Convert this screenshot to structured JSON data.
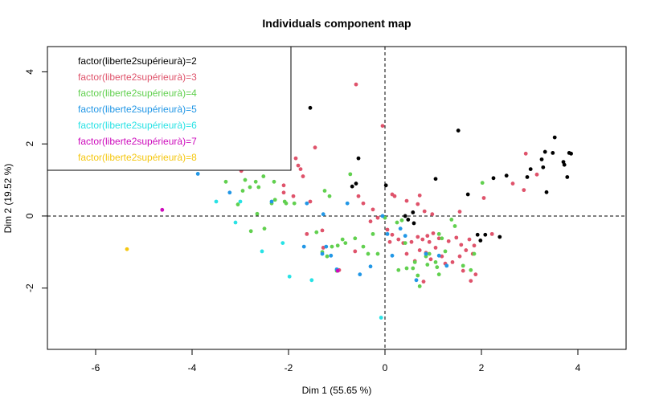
{
  "chart_data": {
    "type": "scatter",
    "title": "Individuals component map",
    "xlabel": "Dim 1 (55.65 %)",
    "ylabel": "Dim 2 (19.52 %)",
    "xlim": [
      -7.0,
      5.0
    ],
    "ylim": [
      -3.7,
      4.7
    ],
    "xticks": [
      -6,
      -4,
      -2,
      0,
      2,
      4
    ],
    "yticks": [
      -2,
      0,
      2,
      4
    ],
    "grid": false,
    "reference_lines": {
      "x": 0,
      "y": 0,
      "style": "dashed"
    },
    "legend_position": "top-left",
    "series": [
      {
        "name": "factor(liberte2supérieurà)=2",
        "color": "#000000",
        "points": [
          [
            -1.55,
            3.0
          ],
          [
            -0.55,
            1.6
          ],
          [
            -0.6,
            0.9
          ],
          [
            -0.68,
            0.82
          ],
          [
            0.02,
            0.85
          ],
          [
            1.05,
            1.03
          ],
          [
            1.52,
            2.37
          ],
          [
            1.72,
            0.6
          ],
          [
            2.25,
            1.05
          ],
          [
            2.52,
            1.12
          ],
          [
            2.95,
            1.08
          ],
          [
            3.02,
            1.3
          ],
          [
            3.25,
            1.57
          ],
          [
            3.28,
            1.35
          ],
          [
            3.32,
            1.78
          ],
          [
            3.35,
            0.66
          ],
          [
            3.48,
            1.75
          ],
          [
            3.52,
            2.18
          ],
          [
            3.7,
            1.5
          ],
          [
            3.72,
            1.42
          ],
          [
            3.78,
            1.08
          ],
          [
            3.82,
            1.75
          ],
          [
            3.86,
            1.73
          ],
          [
            0.42,
            0.0
          ],
          [
            0.48,
            -0.1
          ],
          [
            0.58,
            0.1
          ],
          [
            0.6,
            -0.2
          ],
          [
            1.92,
            -0.52
          ],
          [
            1.98,
            -0.68
          ],
          [
            2.08,
            -0.52
          ],
          [
            2.38,
            -0.58
          ]
        ]
      },
      {
        "name": "factor(liberte2supérieurà)=3",
        "color": "#DF536B",
        "points": [
          [
            -0.6,
            3.65
          ],
          [
            -0.05,
            2.5
          ],
          [
            -1.45,
            1.9
          ],
          [
            -1.85,
            1.6
          ],
          [
            -1.8,
            1.4
          ],
          [
            -1.75,
            1.3
          ],
          [
            -1.7,
            1.1
          ],
          [
            -2.98,
            1.25
          ],
          [
            -2.1,
            0.85
          ],
          [
            -2.1,
            0.65
          ],
          [
            -1.9,
            0.55
          ],
          [
            -1.55,
            0.4
          ],
          [
            -0.55,
            0.55
          ],
          [
            -0.45,
            0.35
          ],
          [
            -0.25,
            0.18
          ],
          [
            -0.15,
            -0.05
          ],
          [
            0.15,
            0.6
          ],
          [
            0.2,
            0.55
          ],
          [
            0.45,
            0.42
          ],
          [
            0.72,
            0.57
          ],
          [
            0.68,
            0.33
          ],
          [
            0.82,
            0.13
          ],
          [
            0.98,
            0.05
          ],
          [
            0.05,
            -0.38
          ],
          [
            0.1,
            -0.72
          ],
          [
            0.15,
            -0.52
          ],
          [
            0.28,
            -0.65
          ],
          [
            0.38,
            -0.75
          ],
          [
            0.45,
            -1.05
          ],
          [
            0.55,
            -0.72
          ],
          [
            0.62,
            -1.25
          ],
          [
            0.68,
            -0.58
          ],
          [
            0.72,
            -0.95
          ],
          [
            0.78,
            -0.65
          ],
          [
            0.85,
            -1.02
          ],
          [
            0.88,
            -0.55
          ],
          [
            0.92,
            -0.72
          ],
          [
            0.95,
            -1.2
          ],
          [
            1.0,
            -0.48
          ],
          [
            1.05,
            -0.88
          ],
          [
            1.12,
            -0.62
          ],
          [
            1.18,
            -1.12
          ],
          [
            1.25,
            -1.32
          ],
          [
            1.32,
            -0.7
          ],
          [
            1.4,
            -1.28
          ],
          [
            1.48,
            -0.6
          ],
          [
            1.55,
            -1.12
          ],
          [
            1.58,
            -0.8
          ],
          [
            1.62,
            -1.52
          ],
          [
            1.68,
            -0.95
          ],
          [
            1.75,
            -0.65
          ],
          [
            1.78,
            -1.8
          ],
          [
            1.82,
            -1.05
          ],
          [
            1.85,
            -0.82
          ],
          [
            1.88,
            -1.62
          ],
          [
            1.55,
            0.12
          ],
          [
            2.05,
            0.5
          ],
          [
            2.22,
            -0.5
          ],
          [
            2.65,
            0.9
          ],
          [
            2.88,
            0.72
          ],
          [
            2.92,
            1.73
          ],
          [
            3.15,
            1.15
          ],
          [
            0.8,
            -1.82
          ],
          [
            -0.95,
            -1.5
          ],
          [
            -1.28,
            -0.88
          ],
          [
            -1.62,
            -0.5
          ],
          [
            -1.3,
            -0.4
          ],
          [
            -0.62,
            -0.98
          ],
          [
            -0.3,
            -0.15
          ]
        ]
      },
      {
        "name": "factor(liberte2supérieurà)=4",
        "color": "#61D04F",
        "points": [
          [
            -2.1,
            2.5
          ],
          [
            -0.72,
            1.16
          ],
          [
            -2.52,
            1.1
          ],
          [
            -2.9,
            1.0
          ],
          [
            -2.68,
            0.95
          ],
          [
            -3.3,
            0.95
          ],
          [
            -2.3,
            0.95
          ],
          [
            -2.62,
            0.8
          ],
          [
            -2.8,
            0.8
          ],
          [
            -2.95,
            0.7
          ],
          [
            -1.25,
            0.7
          ],
          [
            -1.15,
            0.55
          ],
          [
            -2.28,
            0.45
          ],
          [
            -2.35,
            0.35
          ],
          [
            -2.05,
            0.35
          ],
          [
            -2.08,
            0.4
          ],
          [
            -1.88,
            0.35
          ],
          [
            -3.05,
            0.32
          ],
          [
            -2.65,
            0.06
          ],
          [
            -2.78,
            -0.42
          ],
          [
            -2.5,
            -0.35
          ],
          [
            -1.42,
            -0.45
          ],
          [
            -1.3,
            -1.0
          ],
          [
            -1.1,
            -0.85
          ],
          [
            -0.98,
            -0.82
          ],
          [
            -0.88,
            -0.65
          ],
          [
            -0.82,
            -0.75
          ],
          [
            -0.62,
            -0.62
          ],
          [
            -0.45,
            -0.85
          ],
          [
            -0.25,
            -0.5
          ],
          [
            -0.35,
            -1.05
          ],
          [
            -0.15,
            -1.05
          ],
          [
            -1.2,
            -1.12
          ],
          [
            -1.0,
            -1.52
          ],
          [
            0.0,
            -0.05
          ],
          [
            0.25,
            -0.18
          ],
          [
            0.35,
            -0.12
          ],
          [
            0.42,
            -0.75
          ],
          [
            0.28,
            -1.5
          ],
          [
            0.45,
            -1.45
          ],
          [
            0.58,
            -1.45
          ],
          [
            0.68,
            -1.65
          ],
          [
            0.62,
            -1.28
          ],
          [
            0.72,
            -1.95
          ],
          [
            0.85,
            -1.12
          ],
          [
            0.88,
            -1.35
          ],
          [
            0.92,
            -1.05
          ],
          [
            1.05,
            -1.28
          ],
          [
            1.08,
            -1.42
          ],
          [
            1.12,
            -0.5
          ],
          [
            1.12,
            -1.62
          ],
          [
            1.18,
            -0.62
          ],
          [
            1.25,
            -0.98
          ],
          [
            1.38,
            -0.1
          ],
          [
            1.45,
            -0.28
          ],
          [
            1.62,
            -1.38
          ],
          [
            1.78,
            -1.5
          ],
          [
            1.85,
            -1.05
          ],
          [
            2.02,
            0.92
          ]
        ]
      },
      {
        "name": "factor(liberte2supérieurà)=5",
        "color": "#2297E6",
        "points": [
          [
            -5.52,
            1.38
          ],
          [
            -3.88,
            1.17
          ],
          [
            -3.22,
            0.65
          ],
          [
            -2.35,
            0.4
          ],
          [
            -1.68,
            -0.85
          ],
          [
            -1.62,
            0.35
          ],
          [
            -1.28,
            0.05
          ],
          [
            -1.3,
            -1.05
          ],
          [
            -1.22,
            -0.85
          ],
          [
            -1.12,
            -1.1
          ],
          [
            -1.0,
            -1.48
          ],
          [
            -0.78,
            0.35
          ],
          [
            -0.52,
            -1.62
          ],
          [
            -0.3,
            -1.4
          ],
          [
            -0.05,
            0.0
          ],
          [
            0.05,
            -0.5
          ],
          [
            0.15,
            -1.1
          ],
          [
            0.32,
            -0.35
          ],
          [
            0.42,
            -0.55
          ],
          [
            0.65,
            -1.78
          ],
          [
            0.85,
            -1.05
          ],
          [
            1.12,
            -1.1
          ],
          [
            1.28,
            -1.38
          ]
        ]
      },
      {
        "name": "factor(liberte2supérieurà)=6",
        "color": "#28E2E5",
        "points": [
          [
            -3.42,
            2.35
          ],
          [
            -3.5,
            0.4
          ],
          [
            -3.0,
            0.4
          ],
          [
            -3.1,
            -0.18
          ],
          [
            -2.55,
            -0.98
          ],
          [
            -2.12,
            -0.75
          ],
          [
            -1.98,
            -1.68
          ],
          [
            -1.52,
            -1.78
          ],
          [
            -0.08,
            -2.82
          ]
        ]
      },
      {
        "name": "factor(liberte2supérieurà)=7",
        "color": "#CD0BBC",
        "points": [
          [
            -4.62,
            0.17
          ],
          [
            -0.98,
            -1.52
          ]
        ]
      },
      {
        "name": "factor(liberte2supérieurà)=8",
        "color": "#F5C710",
        "points": [
          [
            -5.35,
            -0.92
          ]
        ]
      }
    ]
  }
}
